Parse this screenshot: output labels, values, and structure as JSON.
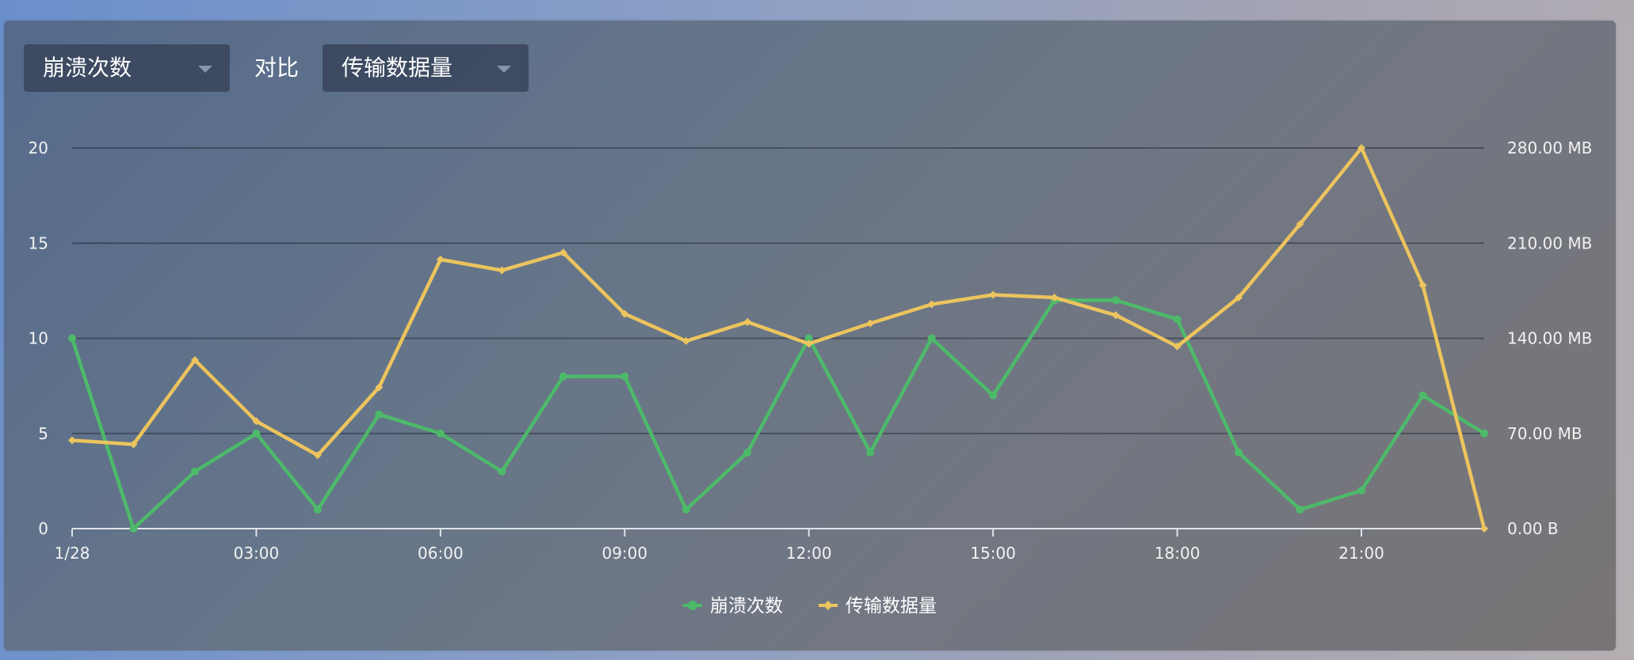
{
  "controls": {
    "left_select": "崩溃次数",
    "vs_label": "对比",
    "right_select": "传输数据量"
  },
  "colors": {
    "crashes": "#4dba6a",
    "traffic": "#ecc45e"
  },
  "chart_data": {
    "type": "line",
    "x": [
      "1/28",
      "01:00",
      "02:00",
      "03:00",
      "04:00",
      "05:00",
      "06:00",
      "07:00",
      "08:00",
      "09:00",
      "10:00",
      "11:00",
      "12:00",
      "13:00",
      "14:00",
      "15:00",
      "16:00",
      "17:00",
      "18:00",
      "19:00",
      "20:00",
      "21:00",
      "22:00",
      "23:00"
    ],
    "xtick_labels": [
      "1/28",
      "03:00",
      "06:00",
      "09:00",
      "12:00",
      "15:00",
      "18:00",
      "21:00"
    ],
    "xtick_indices": [
      0,
      3,
      6,
      9,
      12,
      15,
      18,
      21
    ],
    "y_left_ticks": [
      "0",
      "5",
      "10",
      "15",
      "20"
    ],
    "y_left_lim": [
      0,
      20
    ],
    "y_right_ticks": [
      "0.00 B",
      "70.00 MB",
      "140.00 MB",
      "210.00 MB",
      "280.00 MB"
    ],
    "y_right_lim": [
      0,
      280
    ],
    "grid": true,
    "legend_position": "bottom-center",
    "series": [
      {
        "name": "崩溃次数",
        "axis": "left",
        "color": "#4dba6a",
        "values": [
          10,
          0,
          3,
          5,
          1,
          6,
          5,
          3,
          8,
          8,
          1,
          4,
          10,
          4,
          10,
          7,
          12,
          12,
          11,
          4,
          1,
          2,
          7,
          5
        ]
      },
      {
        "name": "传输数据量",
        "axis": "right",
        "unit": "MB",
        "color": "#ecc45e",
        "values": [
          65,
          62,
          124,
          79,
          54,
          104,
          198,
          190,
          203,
          158,
          138,
          152,
          136,
          151,
          165,
          172,
          170,
          157,
          134,
          170,
          224,
          280,
          179,
          0
        ]
      }
    ]
  }
}
